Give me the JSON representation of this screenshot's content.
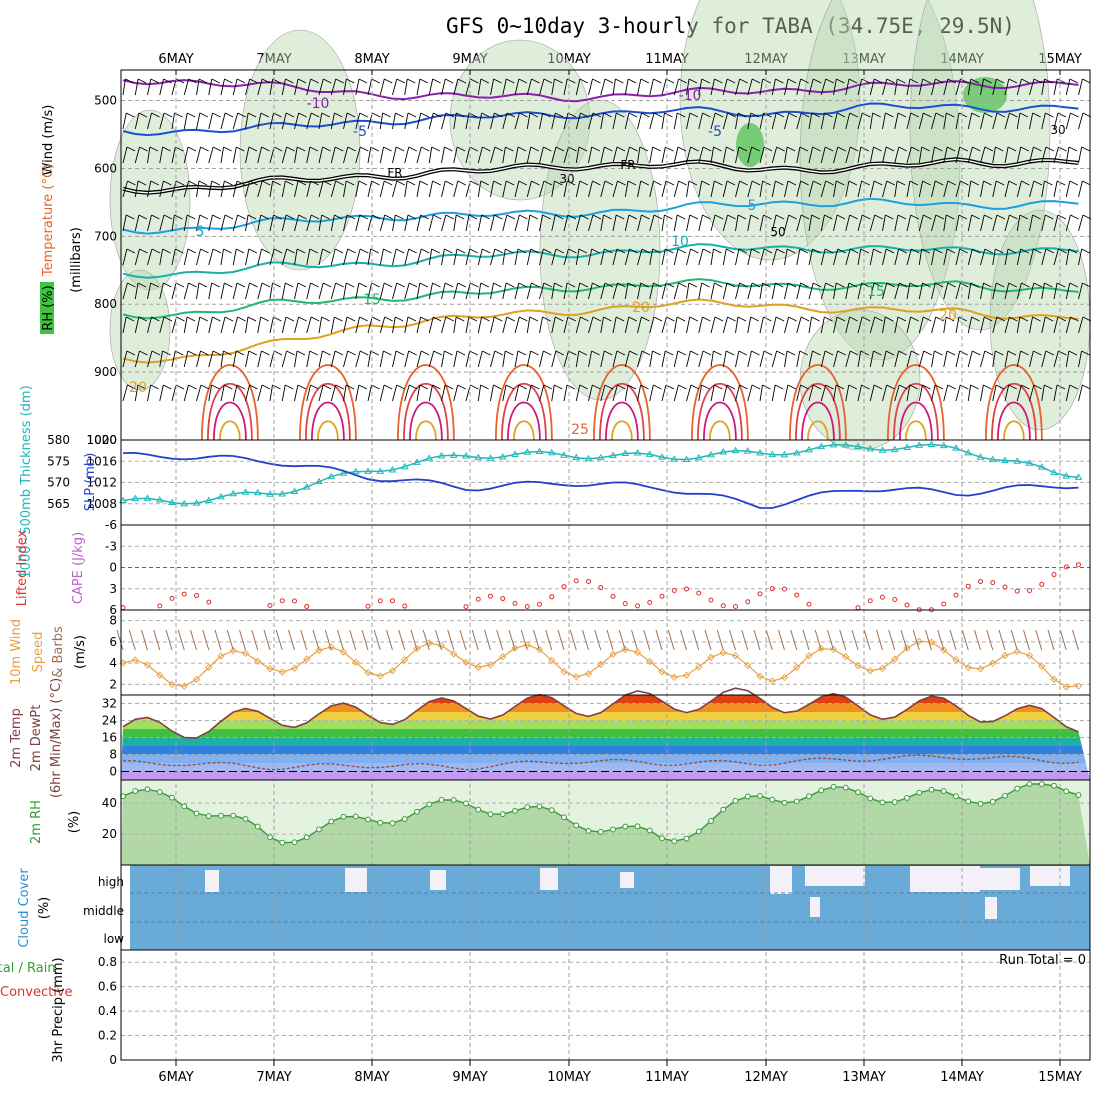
{
  "title": "GFS 0~10day 3-hourly for TABA (34.75E, 29.5N)",
  "dates": [
    "6MAY",
    "7MAY",
    "8MAY",
    "9MAY",
    "10MAY",
    "11MAY",
    "12MAY",
    "13MAY",
    "14MAY",
    "15MAY"
  ],
  "panels": {
    "upper": {
      "ylabel_parts": [
        {
          "text": "Wind",
          "color": "#000000"
        },
        {
          "text": "(m/s)",
          "color": "#000000"
        },
        {
          "text": "Temperature",
          "color": "#e8622a"
        },
        {
          "text": "(°C)",
          "color": "#c02080"
        },
        {
          "text": "RH (%)",
          "color": "#000000"
        },
        {
          "text": "(millibars)",
          "color": "#000000"
        }
      ],
      "pressure_ticks": [
        "500",
        "600",
        "700",
        "800",
        "900",
        "1000"
      ],
      "freezing_label": "FR",
      "temp_labels": [
        "-10",
        "-5",
        "5",
        "10",
        "15",
        "20",
        "25",
        "20"
      ],
      "rh_labels": [
        "30",
        "50",
        "30"
      ]
    },
    "slp": {
      "thickness_label": "1000~500mb Thickness (dm)",
      "slp_label": "SLP (mb)",
      "thickness_ticks": [
        "565",
        "570",
        "575",
        "580"
      ],
      "slp_ticks": [
        "1008",
        "1012",
        "1016",
        "1020"
      ]
    },
    "cape": {
      "li_label": "Lifted Index",
      "cape_label": "CAPE (J/kg)",
      "ticks": [
        "-6",
        "-3",
        "0",
        "3",
        "6"
      ]
    },
    "wind10": {
      "label_main": "10m Wind",
      "label_speed": "Speed",
      "label_barbs": "& Barbs",
      "unit": "(m/s)",
      "ticks": [
        "2",
        "4",
        "6",
        "8"
      ]
    },
    "temp2m": {
      "label1": "2m Temp",
      "label2": "2m DewPt",
      "label3": "(6hr Min/Max) (°C)",
      "ticks": [
        "0",
        "8",
        "16",
        "24",
        "32"
      ]
    },
    "rh2m": {
      "label": "2m RH",
      "unit": "(%)",
      "ticks": [
        "20",
        "40"
      ]
    },
    "cloud": {
      "label": "Cloud Cover",
      "unit": "(%)",
      "levels": [
        "high",
        "middle",
        "low"
      ]
    },
    "precip": {
      "label1": "Total / Rain",
      "label2": "Convective",
      "label3": "3hr Precip (mm)",
      "ticks": [
        "0",
        "0.2",
        "0.4",
        "0.6",
        "0.8"
      ],
      "run_total": "Run Total = 0"
    }
  },
  "colors": {
    "slp": "#2040d0",
    "thickness": "#20b8b8",
    "cape_li": "#e03030",
    "wind_speed": "#e8a040",
    "wind_barb": "#a07050",
    "temp2m": "#804040",
    "dewpt": "#904848",
    "rh2m": "#3a9a3a",
    "cloud": "#6aaad6",
    "rh_fill": "#b8d8b0"
  },
  "chart_data": [
    {
      "type": "line",
      "name": "upper-air cross section",
      "x": [
        "6MAY",
        "7MAY",
        "8MAY",
        "9MAY",
        "10MAY",
        "11MAY",
        "12MAY",
        "13MAY",
        "14MAY",
        "15MAY"
      ],
      "ylim": [
        1000,
        450
      ],
      "ylabel": "millibars",
      "series": [
        {
          "name": "-10",
          "values": [
            470,
            480,
            490,
            495,
            495,
            490,
            485,
            480,
            475,
            475
          ]
        },
        {
          "name": "-5",
          "values": [
            545,
            540,
            530,
            525,
            520,
            515,
            520,
            510,
            510,
            510
          ]
        },
        {
          "name": "FR",
          "values": [
            630,
            620,
            610,
            605,
            595,
            595,
            600,
            600,
            590,
            590
          ]
        },
        {
          "name": "5",
          "values": [
            690,
            680,
            670,
            670,
            665,
            660,
            650,
            650,
            655,
            650
          ]
        },
        {
          "name": "10",
          "values": [
            755,
            745,
            740,
            730,
            725,
            720,
            715,
            720,
            720,
            720
          ]
        },
        {
          "name": "15",
          "values": [
            815,
            800,
            790,
            785,
            775,
            770,
            770,
            775,
            770,
            780
          ]
        },
        {
          "name": "20",
          "values": [
            880,
            860,
            830,
            820,
            810,
            800,
            800,
            810,
            810,
            820
          ]
        }
      ]
    },
    {
      "type": "line",
      "name": "thickness and SLP",
      "x": [
        "6MAY",
        "7MAY",
        "8MAY",
        "9MAY",
        "10MAY",
        "11MAY",
        "12MAY",
        "13MAY",
        "14MAY",
        "15MAY"
      ],
      "series": [
        {
          "name": "1000~500mb Thickness (dm)",
          "values": [
            565.5,
            567.5,
            573,
            576.5,
            576.5,
            576,
            577,
            578.5,
            578,
            572
          ]
        },
        {
          "name": "SLP (mb)",
          "values": [
            1017,
            1016,
            1013,
            1011,
            1012,
            1011,
            1007.5,
            1011,
            1010,
            1011.5
          ]
        }
      ],
      "ylim_thickness": [
        560,
        580
      ],
      "ylim_slp": [
        1004,
        1020
      ]
    },
    {
      "type": "line",
      "name": "Lifted Index",
      "x": [
        "6MAY",
        "7MAY",
        "8MAY",
        "9MAY",
        "10MAY",
        "11MAY",
        "12MAY",
        "13MAY",
        "14MAY",
        "15MAY"
      ],
      "ylim": [
        6,
        -6
      ],
      "values": [
        5,
        6,
        6,
        6,
        3,
        4.5,
        4,
        6,
        4,
        1
      ],
      "ylabel": "Lifted Index"
    },
    {
      "type": "line",
      "name": "10m wind speed",
      "x": [
        "6MAY",
        "7MAY",
        "8MAY",
        "9MAY",
        "10MAY",
        "11MAY",
        "12MAY",
        "13MAY",
        "14MAY",
        "15MAY"
      ],
      "ylim": [
        1,
        9
      ],
      "values": [
        3,
        4.5,
        4,
        5,
        4,
        4,
        3.5,
        4.5,
        5,
        3
      ],
      "ylabel": "(m/s)"
    },
    {
      "type": "area",
      "name": "2m Temp and DewPt",
      "x": [
        "6MAY",
        "7MAY",
        "8MAY",
        "9MAY",
        "10MAY",
        "11MAY",
        "12MAY",
        "13MAY",
        "14MAY",
        "15MAY"
      ],
      "ylim": [
        -4,
        36
      ],
      "series": [
        {
          "name": "2m Temp",
          "values": [
            20,
            26,
            27,
            30,
            31,
            33,
            34,
            30,
            30,
            24
          ]
        },
        {
          "name": "2m DewPt",
          "values": [
            4,
            2,
            3,
            2,
            5,
            4,
            4,
            6,
            7,
            5
          ]
        }
      ]
    },
    {
      "type": "area",
      "name": "2m RH",
      "x": [
        "6MAY",
        "7MAY",
        "8MAY",
        "9MAY",
        "10MAY",
        "11MAY",
        "12MAY",
        "13MAY",
        "14MAY",
        "15MAY"
      ],
      "ylim": [
        0,
        55
      ],
      "values": [
        44,
        17,
        30,
        40,
        30,
        16,
        45,
        46,
        43,
        50
      ],
      "ylabel": "(%)"
    },
    {
      "type": "bar",
      "name": "3hr Precip",
      "x": [
        "6MAY",
        "7MAY",
        "8MAY",
        "9MAY",
        "10MAY",
        "11MAY",
        "12MAY",
        "13MAY",
        "14MAY",
        "15MAY"
      ],
      "ylim": [
        0,
        0.9
      ],
      "values": [
        0,
        0,
        0,
        0,
        0,
        0,
        0,
        0,
        0,
        0
      ],
      "ylabel": "3hr Precip (mm)"
    }
  ]
}
